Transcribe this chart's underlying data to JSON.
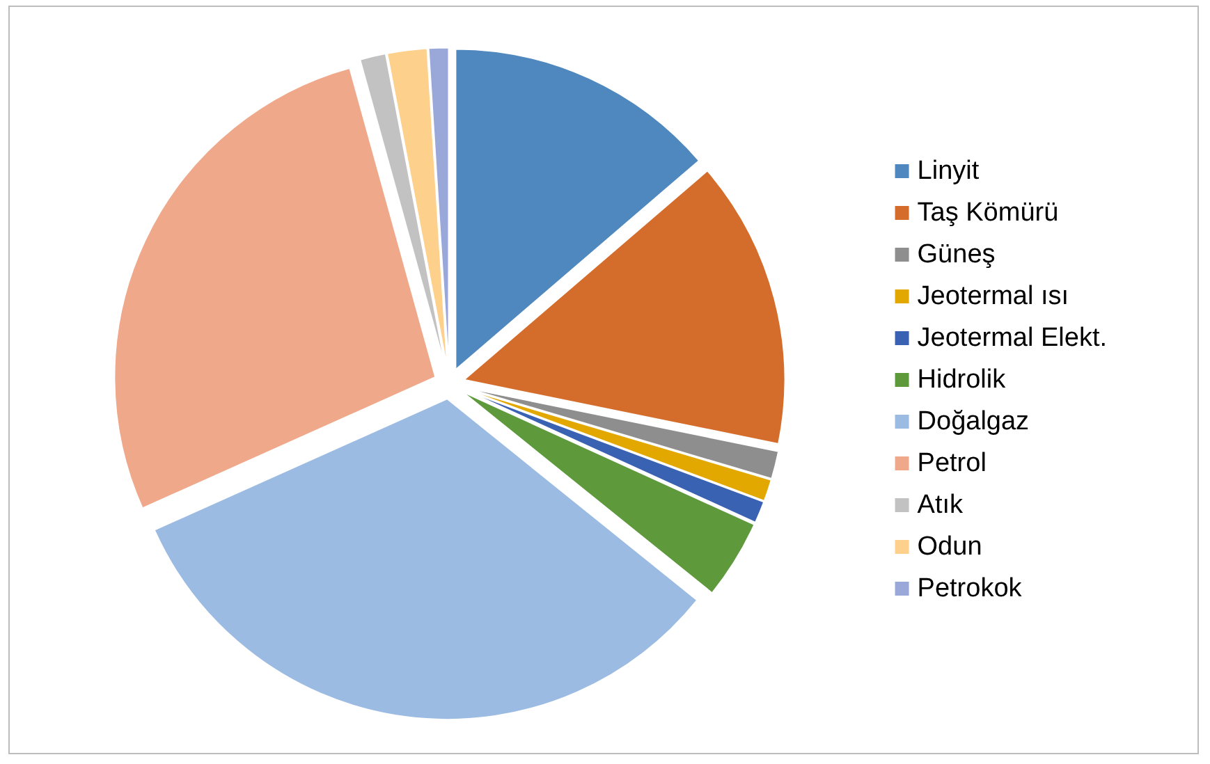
{
  "chart_data": {
    "type": "pie",
    "categories": [
      "Linyit",
      "Taş Kömürü",
      "Güneş",
      "Jeotermal ısı",
      "Jeotermal Elekt.",
      "Hidrolik",
      "Doğalgaz",
      "Petrol",
      "Atık",
      "Odun",
      "Petrokok"
    ],
    "values": [
      13.7,
      14.5,
      1.4,
      1.1,
      1.1,
      4.0,
      32.5,
      27.4,
      1.3,
      2.0,
      1.0
    ],
    "colors": [
      "#4f87bf",
      "#d46d2c",
      "#8e8e8e",
      "#e3a800",
      "#3a62b3",
      "#5e9a3c",
      "#9bbbe2",
      "#f0a88a",
      "#c2c2c2",
      "#fdd08c",
      "#99a8d9"
    ],
    "legend": "right"
  }
}
